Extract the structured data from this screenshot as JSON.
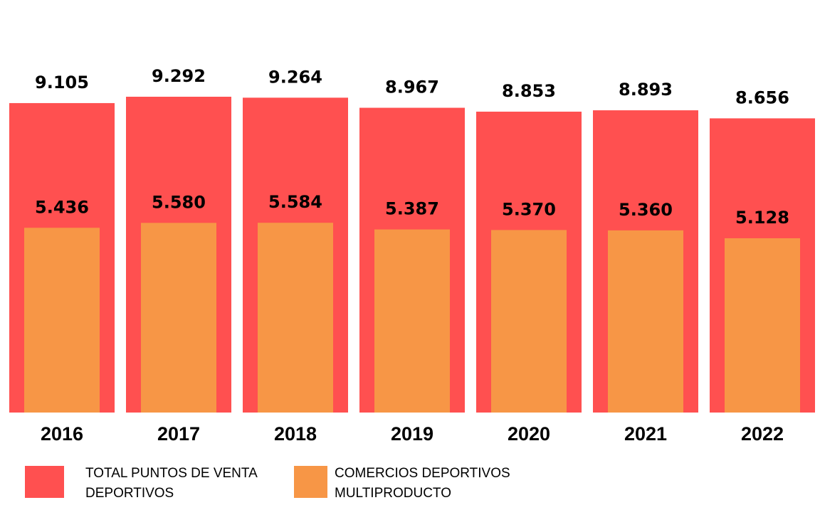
{
  "chart_data": {
    "type": "bar",
    "categories": [
      "2016",
      "2017",
      "2018",
      "2019",
      "2020",
      "2021",
      "2022"
    ],
    "series": [
      {
        "name": "TOTAL PUNTOS DE VENTA DEPORTIVOS",
        "color": "#ff5050",
        "values": [
          9105,
          9292,
          9264,
          8967,
          8853,
          8893,
          8656
        ],
        "value_labels": [
          "9.105",
          "9.292",
          "9.264",
          "8.967",
          "8.853",
          "8.893",
          "8.656"
        ]
      },
      {
        "name": "COMERCIOS DEPORTIVOS MULTIPRODUCTO",
        "color": "#f79646",
        "values": [
          5436,
          5580,
          5584,
          5387,
          5370,
          5360,
          5128
        ],
        "value_labels": [
          "5.436",
          "5.580",
          "5.584",
          "5.387",
          "5.370",
          "5.360",
          "5.128"
        ]
      }
    ],
    "legend": "bottom-left"
  }
}
